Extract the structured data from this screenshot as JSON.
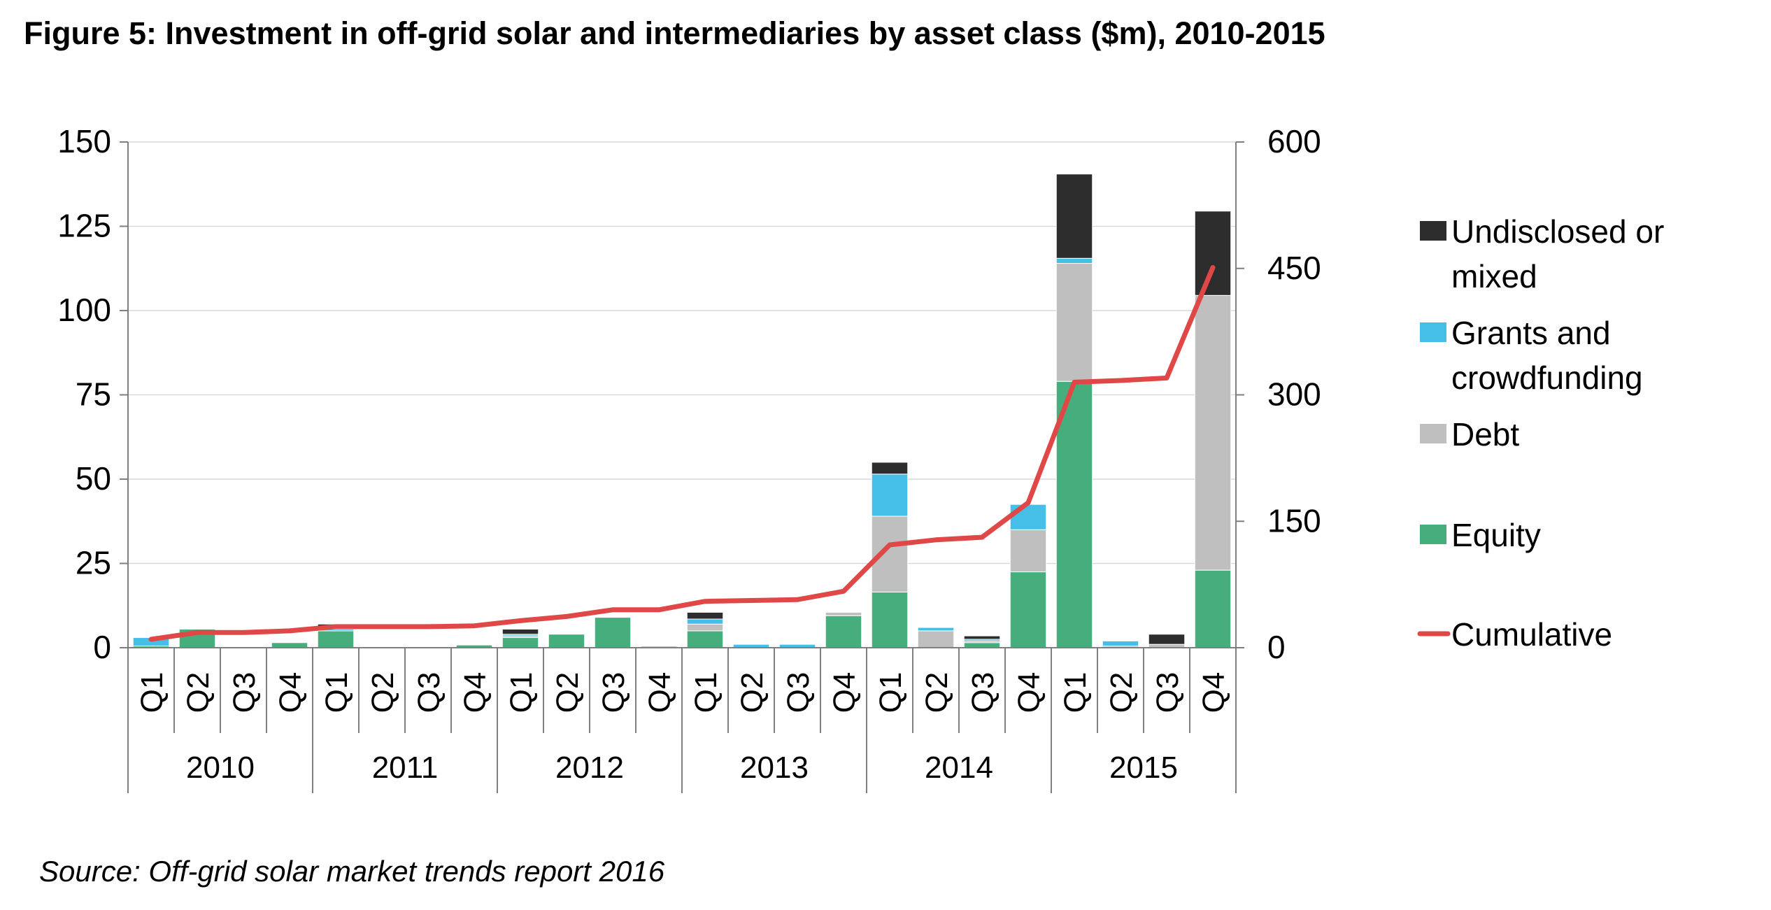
{
  "figure": {
    "title": "Figure 5: Investment in off-grid solar and intermediaries by asset class ($m), 2010-2015",
    "source": "Source: Off-grid solar market trends report 2016"
  },
  "chart_data": {
    "type": "bar",
    "stacked": true,
    "quarters": [
      "Q1",
      "Q2",
      "Q3",
      "Q4",
      "Q1",
      "Q2",
      "Q3",
      "Q4",
      "Q1",
      "Q2",
      "Q3",
      "Q4",
      "Q1",
      "Q2",
      "Q3",
      "Q4",
      "Q1",
      "Q2",
      "Q3",
      "Q4",
      "Q1",
      "Q2",
      "Q3",
      "Q4"
    ],
    "years": [
      "2010",
      "2011",
      "2012",
      "2013",
      "2014",
      "2015"
    ],
    "y_left": {
      "ylim": [
        0,
        150
      ],
      "ticks": [
        "0",
        "25",
        "50",
        "75",
        "100",
        "125",
        "150"
      ]
    },
    "y_right": {
      "ylim": [
        0,
        600
      ],
      "ticks": [
        "0",
        "150",
        "300",
        "450",
        "600"
      ]
    },
    "grid": true,
    "legend_position": "right",
    "series": [
      {
        "name": "Equity",
        "color": "#46ae7d",
        "values": [
          0.5,
          5.5,
          0,
          1.5,
          5,
          0,
          0,
          0.8,
          3,
          4,
          9,
          0,
          5,
          0,
          0,
          9.5,
          16.5,
          0,
          1.5,
          22.5,
          79,
          0,
          0,
          23
        ]
      },
      {
        "name": "Debt",
        "color": "#bfbfbf",
        "values": [
          0,
          0,
          0,
          0,
          0,
          0,
          0,
          0,
          0.5,
          0,
          0,
          0.5,
          2,
          0,
          0,
          1,
          22.5,
          5,
          0.5,
          12.5,
          35,
          0.5,
          1,
          81.5
        ]
      },
      {
        "name": "Grants and crowdfunding",
        "color": "#45bee8",
        "values": [
          2.5,
          0,
          0,
          0,
          0.5,
          0,
          0,
          0,
          0.5,
          0,
          0,
          0,
          1.5,
          1,
          1,
          0,
          12.5,
          1,
          0.5,
          7.5,
          1.5,
          1.5,
          0,
          0
        ]
      },
      {
        "name": "Undisclosed or mixed",
        "color": "#2d2d2e",
        "values": [
          0,
          0,
          0,
          0,
          1.5,
          0,
          0,
          0,
          1.5,
          0,
          0,
          0,
          2,
          0,
          0,
          0,
          3.5,
          0,
          1,
          0,
          25,
          0,
          3,
          25
        ]
      },
      {
        "name": "Cumulative",
        "type": "line",
        "axis": "right",
        "color": "#e04848",
        "values": [
          10,
          18,
          18,
          20,
          25,
          25,
          25,
          26,
          32,
          37,
          45,
          45,
          55,
          56,
          57,
          67,
          122,
          128,
          131,
          172,
          315,
          317,
          320,
          451
        ]
      }
    ],
    "legend": [
      {
        "label": "Undisclosed or mixed",
        "color": "#2d2d2e",
        "kind": "box"
      },
      {
        "label": "Grants and crowdfunding",
        "color": "#45bee8",
        "kind": "box"
      },
      {
        "label": "Debt",
        "color": "#bfbfbf",
        "kind": "box"
      },
      {
        "label": "Equity",
        "color": "#46ae7d",
        "kind": "box"
      },
      {
        "label": "Cumulative",
        "color": "#e04848",
        "kind": "line"
      }
    ]
  }
}
